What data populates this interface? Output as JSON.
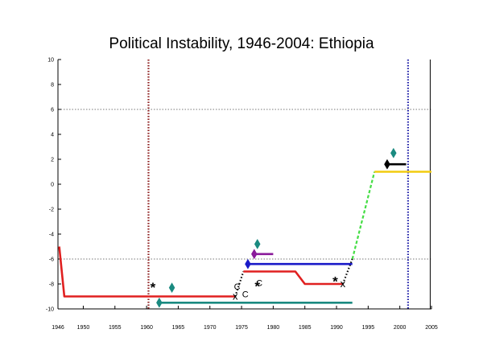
{
  "chart_data": {
    "type": "line",
    "title": "Political Instability, 1946-2004: Ethiopia",
    "xlabel": "",
    "ylabel": "",
    "xlim": [
      1946,
      2005
    ],
    "ylim": [
      -10,
      10
    ],
    "x_ticks": [
      1946,
      1950,
      1955,
      1960,
      1965,
      1970,
      1975,
      1980,
      1985,
      1990,
      1995,
      2000,
      2005
    ],
    "y_ticks": [
      -10,
      -8,
      -6,
      -4,
      -2,
      0,
      2,
      4,
      6,
      8,
      10
    ],
    "reference_lines": [
      {
        "axis": "y",
        "value": 6,
        "style": "dotted",
        "color": "#777777"
      },
      {
        "axis": "y",
        "value": -6,
        "style": "dotted",
        "color": "#777777"
      },
      {
        "axis": "x",
        "value": 1960.3,
        "style": "dotted",
        "color": "#8b1a1a"
      },
      {
        "axis": "x",
        "value": 2001.3,
        "style": "dotted",
        "color": "#1f1fa8"
      },
      {
        "axis": "x",
        "value": 2004.8,
        "style": "solid",
        "color": "#000000"
      }
    ],
    "series": [
      {
        "color": "#e02020",
        "style": "solid",
        "points": [
          [
            1946.2,
            -5
          ],
          [
            1947,
            -9
          ],
          [
            1974,
            -9
          ]
        ]
      },
      {
        "color": "#000000",
        "style": "dotted",
        "points": [
          [
            1974,
            -9
          ],
          [
            1975.3,
            -7
          ]
        ]
      },
      {
        "color": "#e02020",
        "style": "solid",
        "points": [
          [
            1975.3,
            -7
          ],
          [
            1983.5,
            -7
          ],
          [
            1985,
            -8
          ],
          [
            1991,
            -8
          ]
        ]
      },
      {
        "color": "#000000",
        "style": "dotted",
        "points": [
          [
            1991,
            -8
          ],
          [
            1992.5,
            -6
          ]
        ]
      },
      {
        "color": "#44dd44",
        "style": "dashed",
        "points": [
          [
            1992.5,
            -6
          ],
          [
            1996,
            1
          ]
        ]
      },
      {
        "color": "#f2cc10",
        "style": "solid",
        "points": [
          [
            1996,
            1
          ],
          [
            2005,
            1
          ]
        ]
      },
      {
        "color": "#1a1ac8",
        "style": "solid",
        "points": [
          [
            1976,
            -6.4
          ],
          [
            1992.5,
            -6.4
          ]
        ]
      },
      {
        "color": "#1a8a80",
        "style": "solid",
        "points": [
          [
            1962,
            -9.5
          ],
          [
            1992.5,
            -9.5
          ]
        ]
      },
      {
        "color": "#8a1a9a",
        "style": "solid",
        "points": [
          [
            1977,
            -5.6
          ],
          [
            1980,
            -5.6
          ]
        ]
      },
      {
        "color": "#000000",
        "style": "solid",
        "points": [
          [
            1998,
            1.6
          ],
          [
            2001,
            1.6
          ]
        ]
      }
    ],
    "events": [
      {
        "symbol": "diamond",
        "color": "#1a8a80",
        "x": 1962,
        "y": -9.5
      },
      {
        "symbol": "diamond",
        "color": "#1a8a80",
        "x": 1964,
        "y": -8.3
      },
      {
        "symbol": "diamond",
        "color": "#1a1ac8",
        "x": 1976,
        "y": -6.4
      },
      {
        "symbol": "diamond",
        "color": "#8a1a9a",
        "x": 1977,
        "y": -5.6
      },
      {
        "symbol": "diamond",
        "color": "#1a8a80",
        "x": 1977.5,
        "y": -4.8
      },
      {
        "symbol": "diamond",
        "color": "#000000",
        "x": 1998,
        "y": 1.6
      },
      {
        "symbol": "diamond",
        "color": "#1a8a80",
        "x": 1999,
        "y": 2.5
      },
      {
        "symbol": "star",
        "text": "*",
        "x": 1961,
        "y": -8.2
      },
      {
        "symbol": "star",
        "text": "*",
        "x": 1977.5,
        "y": -8.1
      },
      {
        "symbol": "star",
        "text": "*",
        "x": 1989.8,
        "y": -7.7
      },
      {
        "symbol": "letter",
        "text": "C",
        "x": 1974.3,
        "y": -8.2
      },
      {
        "symbol": "letter",
        "text": "C",
        "x": 1975.6,
        "y": -8.8
      },
      {
        "symbol": "letter",
        "text": "C",
        "x": 1977.8,
        "y": -7.9
      },
      {
        "symbol": "cross",
        "text": "x",
        "x": 1974,
        "y": -9
      },
      {
        "symbol": "cross",
        "text": "x",
        "x": 1991,
        "y": -8
      }
    ]
  }
}
